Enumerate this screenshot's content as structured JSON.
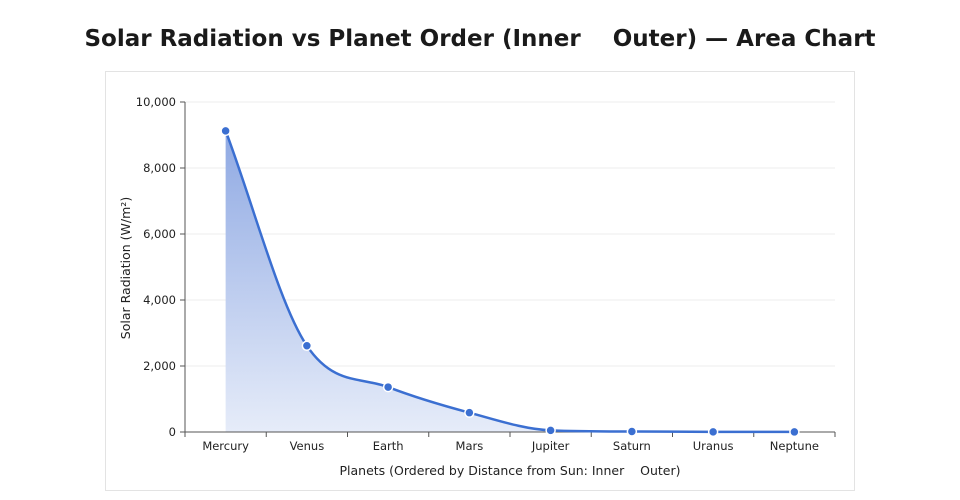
{
  "title": "Solar Radiation vs Planet Order (Inner    Outer) — Area Chart",
  "colors": {
    "line": "#3b6fd1",
    "fill_top": "#8fa9e3",
    "fill_bottom": "#e6ecf9",
    "grid": "#ececec",
    "axis": "#555555"
  },
  "chart_data": {
    "type": "area",
    "title": "Solar Radiation vs Planet Order (Inner    Outer) — Area Chart",
    "xlabel": "Planets (Ordered by Distance from Sun: Inner    Outer)",
    "ylabel": "Solar Radiation (W/m²)",
    "categories": [
      "Mercury",
      "Venus",
      "Earth",
      "Mars",
      "Jupiter",
      "Saturn",
      "Uranus",
      "Neptune"
    ],
    "series": [
      {
        "values": [
          9126,
          2613,
          1361,
          586,
          50,
          15,
          4,
          2
        ]
      }
    ],
    "ylim": [
      0,
      10000
    ],
    "yticks": [
      0,
      2000,
      4000,
      6000,
      8000,
      10000
    ],
    "ytick_labels": [
      "0",
      "2,000",
      "4,000",
      "6,000",
      "8,000",
      "10,000"
    ],
    "grid": true,
    "smooth": true
  }
}
